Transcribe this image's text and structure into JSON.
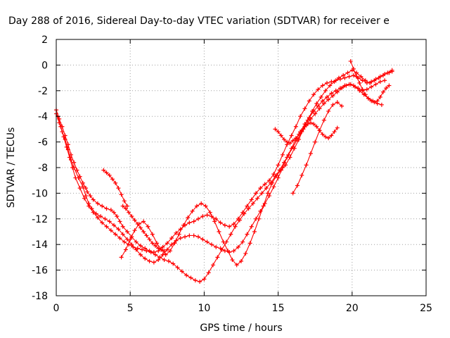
{
  "chart_data": {
    "type": "scatter",
    "title": "Day 288 of 2016, Sidereal Day-to-day VTEC variation (SDTVAR) for receiver e",
    "xlabel": "GPS time / hours",
    "ylabel": "SDTVAR / TECUs",
    "xlim": [
      0,
      25
    ],
    "ylim": [
      -18,
      2
    ],
    "xticks": [
      0,
      5,
      10,
      15,
      20,
      25
    ],
    "yticks": [
      2,
      0,
      -2,
      -4,
      -6,
      -8,
      -10,
      -12,
      -14,
      -16,
      -18
    ],
    "grid": true,
    "marker": "+",
    "color": "#ff0000",
    "series": [
      {
        "x": [
          0.0,
          0.2,
          0.4,
          0.6,
          0.8,
          1.0,
          1.2,
          1.4,
          1.6,
          1.8,
          2.0,
          2.1,
          2.3,
          2.5,
          2.8,
          3.1,
          3.4,
          3.7,
          3.9,
          4.1,
          4.3,
          4.5,
          4.8,
          5.1,
          5.4,
          5.7,
          6.0,
          6.3,
          6.6,
          6.9,
          7.2,
          7.5,
          7.8,
          8.1,
          8.4,
          8.7,
          9.0,
          9.3,
          9.6,
          9.9,
          10.2,
          10.5,
          10.8,
          11.1,
          11.4,
          11.7,
          12.0,
          12.3,
          12.6,
          12.9,
          13.2,
          13.5,
          13.8,
          14.1,
          14.4,
          14.7,
          15.0,
          15.3,
          15.6,
          15.9,
          16.2,
          16.5,
          16.8,
          17.1,
          17.4,
          17.7,
          18.0,
          18.3,
          18.6,
          18.9,
          19.2,
          19.5,
          19.8,
          20.1,
          20.4,
          20.7,
          21.0,
          21.3,
          21.6,
          21.9,
          22.2,
          22.5,
          22.7
        ],
        "y": [
          -3.5,
          -4.2,
          -4.8,
          -5.5,
          -6.2,
          -7.0,
          -7.6,
          -8.2,
          -8.7,
          -9.2,
          -9.6,
          -9.9,
          -10.2,
          -10.5,
          -10.8,
          -11.0,
          -11.2,
          -11.3,
          -11.5,
          -11.8,
          -12.2,
          -12.6,
          -13.0,
          -13.4,
          -13.8,
          -14.1,
          -14.3,
          -14.5,
          -14.6,
          -14.5,
          -14.2,
          -13.9,
          -13.5,
          -13.1,
          -12.8,
          -12.5,
          -12.3,
          -12.2,
          -12.0,
          -11.8,
          -11.7,
          -11.8,
          -12.0,
          -12.3,
          -12.5,
          -12.6,
          -12.4,
          -12.0,
          -11.5,
          -11.0,
          -10.5,
          -10.0,
          -9.6,
          -9.3,
          -9.0,
          -8.5,
          -7.8,
          -7.0,
          -6.2,
          -5.5,
          -4.8,
          -4.0,
          -3.4,
          -2.8,
          -2.3,
          -1.9,
          -1.6,
          -1.4,
          -1.3,
          -1.2,
          -1.1,
          -1.0,
          -0.9,
          -0.8,
          -1.0,
          -1.2,
          -1.4,
          -1.3,
          -1.1,
          -0.9,
          -0.7,
          -0.6,
          -0.5
        ]
      },
      {
        "x": [
          0.0,
          0.2,
          0.4,
          0.6,
          0.8,
          1.0,
          1.2,
          1.5,
          1.8,
          2.0,
          2.2,
          2.4,
          2.7,
          3.0,
          3.3,
          3.6,
          3.9,
          4.2,
          4.5,
          4.8,
          5.1,
          5.4,
          5.7,
          6.0,
          6.3,
          6.6,
          6.9,
          7.2,
          7.5,
          7.8,
          8.1,
          8.4,
          8.7,
          9.0,
          9.3,
          9.6,
          9.9,
          10.2,
          10.5,
          10.8,
          11.1,
          11.4,
          11.7,
          12.0,
          12.3,
          12.6,
          12.9,
          13.2,
          13.5,
          13.8,
          14.1,
          14.4,
          14.7,
          15.0,
          15.3,
          15.6,
          15.9,
          16.2,
          16.5,
          16.8,
          17.1,
          17.4,
          17.7,
          18.0,
          18.3,
          18.6,
          18.9,
          19.2,
          19.5,
          19.8,
          20.1,
          20.4,
          20.7,
          21.0,
          21.3,
          21.6,
          21.9,
          22.2
        ],
        "y": [
          -3.8,
          -4.5,
          -5.2,
          -5.8,
          -6.6,
          -7.4,
          -8.0,
          -8.8,
          -9.5,
          -10.2,
          -10.8,
          -11.2,
          -11.6,
          -11.8,
          -12.0,
          -12.2,
          -12.5,
          -12.8,
          -13.2,
          -13.6,
          -14.0,
          -14.4,
          -14.8,
          -15.1,
          -15.3,
          -15.4,
          -15.2,
          -14.8,
          -14.4,
          -14.0,
          -13.7,
          -13.5,
          -13.4,
          -13.3,
          -13.3,
          -13.4,
          -13.6,
          -13.8,
          -14.0,
          -14.2,
          -14.3,
          -14.5,
          -14.6,
          -14.5,
          -14.2,
          -13.8,
          -13.2,
          -12.6,
          -12.0,
          -11.4,
          -10.8,
          -10.2,
          -9.5,
          -8.8,
          -8.0,
          -7.2,
          -6.5,
          -5.8,
          -5.2,
          -4.6,
          -4.1,
          -3.6,
          -3.2,
          -2.8,
          -2.5,
          -2.2,
          -2.0,
          -1.8,
          -1.6,
          -1.5,
          -1.6,
          -1.8,
          -2.0,
          -1.9,
          -1.7,
          -1.5,
          -1.3,
          -1.2
        ]
      },
      {
        "x": [
          0.1,
          0.3,
          0.5,
          0.7,
          0.9,
          1.1,
          1.3,
          1.6,
          1.9,
          2.2,
          2.5,
          2.8,
          3.1,
          3.4,
          3.7,
          4.0,
          4.3,
          4.6,
          4.9,
          5.2,
          5.5,
          5.8,
          6.1,
          6.4,
          6.7,
          7.0,
          7.3,
          7.6,
          7.9,
          8.2,
          8.5,
          8.8,
          9.1,
          9.4,
          9.7,
          10.0,
          10.3,
          10.6,
          10.9,
          11.2,
          11.5,
          11.8,
          12.1,
          12.4,
          12.7,
          13.0,
          13.3,
          13.6,
          13.9,
          14.2,
          14.5,
          14.8,
          15.1,
          15.4,
          15.7,
          16.0,
          16.3,
          16.6,
          16.9,
          17.2,
          17.5,
          17.8,
          18.1,
          18.4,
          18.7,
          19.0,
          19.3,
          19.6,
          19.9,
          20.2,
          20.5,
          20.8,
          21.1,
          21.4,
          21.7,
          22.0
        ],
        "y": [
          -4.0,
          -4.8,
          -5.6,
          -6.4,
          -7.2,
          -8.0,
          -8.8,
          -9.6,
          -10.4,
          -11.0,
          -11.5,
          -11.9,
          -12.3,
          -12.6,
          -12.9,
          -13.2,
          -13.5,
          -13.8,
          -14.0,
          -14.2,
          -14.3,
          -14.4,
          -14.5,
          -14.6,
          -14.8,
          -15.0,
          -15.2,
          -15.3,
          -15.5,
          -15.8,
          -16.1,
          -16.4,
          -16.6,
          -16.8,
          -16.9,
          -16.7,
          -16.2,
          -15.6,
          -15.0,
          -14.4,
          -13.8,
          -13.2,
          -12.6,
          -12.1,
          -11.6,
          -11.2,
          -10.8,
          -10.4,
          -10.0,
          -9.6,
          -9.2,
          -8.7,
          -8.2,
          -7.6,
          -7.0,
          -6.4,
          -5.8,
          -5.2,
          -4.7,
          -4.2,
          -3.8,
          -3.4,
          -3.0,
          -2.7,
          -2.4,
          -2.1,
          -1.8,
          -1.6,
          -1.5,
          -1.7,
          -2.0,
          -2.3,
          -2.6,
          -2.8,
          -3.0,
          -3.1
        ]
      },
      {
        "x": [
          4.4,
          4.7,
          5.0,
          5.3,
          5.6,
          5.9,
          6.2,
          6.5,
          6.8,
          7.1,
          7.4,
          7.7,
          8.0,
          8.3,
          8.6,
          8.9,
          9.2,
          9.5,
          9.8,
          10.1,
          10.4,
          10.7,
          11.0,
          11.3,
          11.6,
          11.9,
          12.2,
          12.5,
          12.8,
          13.1,
          13.4,
          13.7,
          14.0,
          14.3,
          14.6,
          14.9,
          15.2,
          15.5,
          15.8,
          16.1,
          16.4,
          16.7,
          17.0,
          17.3,
          17.6,
          17.9,
          18.2,
          18.5,
          18.8,
          19.1,
          19.4,
          19.7,
          20.0,
          20.3,
          20.6,
          20.9,
          21.2,
          21.5,
          21.8,
          22.1,
          22.4,
          22.7
        ],
        "y": [
          -15.0,
          -14.4,
          -13.6,
          -12.9,
          -12.4,
          -12.2,
          -12.6,
          -13.2,
          -13.9,
          -14.4,
          -14.8,
          -14.5,
          -13.9,
          -13.2,
          -12.5,
          -11.9,
          -11.4,
          -11.0,
          -10.8,
          -11.0,
          -11.5,
          -12.2,
          -13.0,
          -13.8,
          -14.5,
          -15.2,
          -15.6,
          -15.3,
          -14.7,
          -13.9,
          -13.0,
          -12.0,
          -11.0,
          -10.0,
          -9.2,
          -8.6,
          -8.2,
          -7.8,
          -7.2,
          -6.5,
          -5.8,
          -5.0,
          -4.3,
          -3.6,
          -3.0,
          -2.5,
          -2.0,
          -1.6,
          -1.3,
          -1.0,
          -0.8,
          -0.6,
          -0.4,
          -0.6,
          -0.9,
          -1.2,
          -1.4,
          -1.2,
          -1.0,
          -0.8,
          -0.6,
          -0.4
        ]
      },
      {
        "x": [
          4.5,
          4.7,
          4.9,
          5.1,
          5.3,
          5.5,
          5.7,
          5.9,
          6.1,
          6.3,
          6.5,
          6.7,
          6.9,
          7.1,
          7.3
        ],
        "y": [
          -11.0,
          -11.2,
          -11.5,
          -11.8,
          -12.1,
          -12.4,
          -12.7,
          -13.0,
          -13.3,
          -13.6,
          -13.9,
          -14.1,
          -14.3,
          -14.4,
          -14.5
        ]
      },
      {
        "x": [
          3.2,
          3.4,
          3.6,
          3.8,
          4.0,
          4.2,
          4.4,
          4.6,
          4.8
        ],
        "y": [
          -8.2,
          -8.4,
          -8.6,
          -8.9,
          -9.2,
          -9.6,
          -10.1,
          -10.6,
          -11.0
        ]
      },
      {
        "x": [
          14.8,
          15.0,
          15.2,
          15.4,
          15.6,
          15.8,
          16.0,
          16.2,
          16.4,
          16.6,
          16.8,
          17.0,
          17.2,
          17.4,
          17.6,
          17.8,
          18.0,
          18.2,
          18.4,
          18.6,
          18.8,
          19.0
        ],
        "y": [
          -5.0,
          -5.2,
          -5.5,
          -5.8,
          -6.0,
          -6.1,
          -5.9,
          -5.7,
          -5.4,
          -5.1,
          -4.8,
          -4.6,
          -4.5,
          -4.6,
          -4.8,
          -5.1,
          -5.4,
          -5.6,
          -5.7,
          -5.5,
          -5.2,
          -4.9
        ]
      },
      {
        "x": [
          16.0,
          16.3,
          16.6,
          16.9,
          17.2,
          17.5,
          17.8,
          18.1,
          18.4,
          18.7,
          19.0,
          19.3
        ],
        "y": [
          -10.0,
          -9.4,
          -8.6,
          -7.8,
          -6.9,
          -6.0,
          -5.1,
          -4.3,
          -3.6,
          -3.1,
          -2.9,
          -3.2
        ]
      },
      {
        "x": [
          19.9,
          20.1,
          20.3,
          20.5,
          20.7,
          20.9,
          21.1,
          21.3,
          21.5,
          21.7,
          21.9,
          22.1,
          22.3,
          22.5
        ],
        "y": [
          0.3,
          -0.3,
          -0.9,
          -1.4,
          -1.9,
          -2.3,
          -2.6,
          -2.8,
          -2.9,
          -2.8,
          -2.5,
          -2.1,
          -1.8,
          -1.6
        ]
      }
    ]
  }
}
